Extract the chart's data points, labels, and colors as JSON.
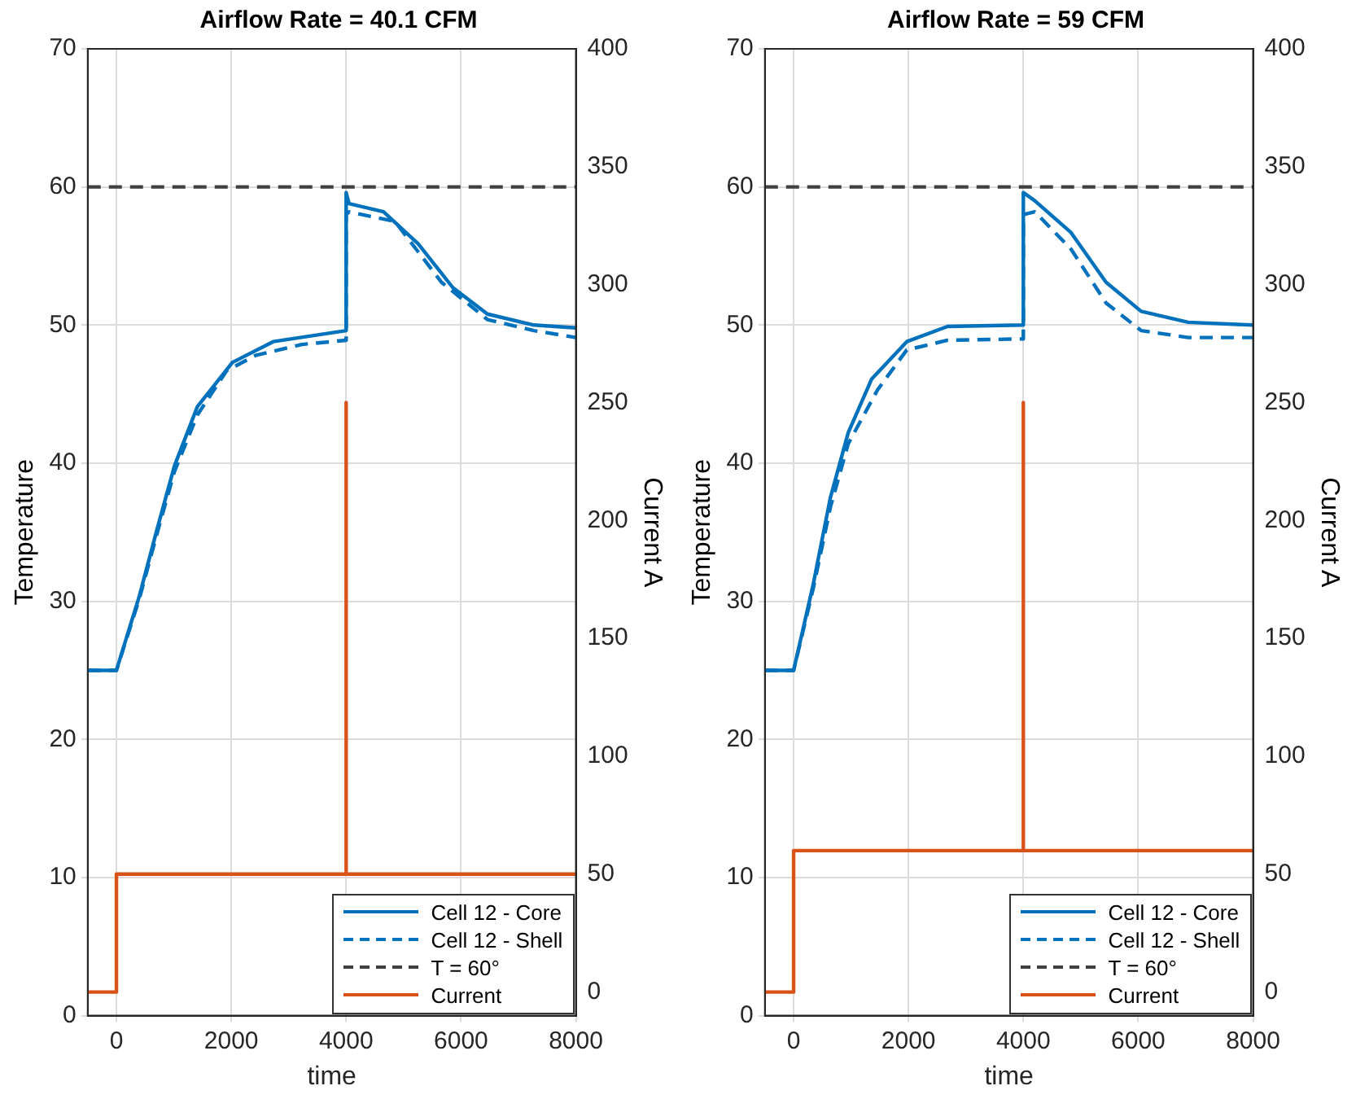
{
  "chart_data": [
    {
      "type": "line",
      "title": "Airflow Rate = 40.1 CFM",
      "xlabel": "time",
      "ylabel": "Temperature",
      "y2label": "Current A",
      "xlim": [
        -500,
        8000
      ],
      "xticks": [
        0,
        2000,
        4000,
        6000,
        8000
      ],
      "ylim": [
        0,
        70
      ],
      "yticks": [
        0,
        10,
        20,
        30,
        40,
        50,
        60,
        70
      ],
      "y2lim": [
        -10,
        400
      ],
      "y2ticks": [
        0,
        50,
        100,
        150,
        200,
        250,
        300,
        350,
        400
      ],
      "grid": true,
      "legend": "bottom right",
      "marker": "none",
      "ref_lines": [
        {
          "axis": "y",
          "value": 60,
          "label": "T = 60°",
          "color": "#404040",
          "line_style": "dashed"
        }
      ],
      "series": [
        {
          "name": "Cell 12 - Core",
          "color": "#0072bd",
          "line_style": "solid",
          "x": [
            -500,
            0,
            400,
            700,
            1010,
            1410,
            2020,
            2730,
            4000,
            4000,
            4050,
            4650,
            5250,
            5860,
            6460,
            7270,
            8000
          ],
          "values": [
            25,
            25,
            30.4,
            35.1,
            39.8,
            44.1,
            47.3,
            48.8,
            49.6,
            59.6,
            58.8,
            58.2,
            55.9,
            52.7,
            50.8,
            50.0,
            49.8
          ]
        },
        {
          "name": "Cell 12 - Shell",
          "color": "#0072bd",
          "line_style": "dashed",
          "x": [
            -500,
            0,
            400,
            700,
            1010,
            1410,
            1920,
            2420,
            3230,
            4000,
            4000,
            4050,
            4850,
            5660,
            6460,
            7270,
            8000
          ],
          "values": [
            25,
            25,
            30.2,
            34.8,
            39.4,
            43.5,
            46.7,
            47.8,
            48.6,
            48.9,
            58.0,
            58.2,
            57.5,
            53.1,
            50.4,
            49.6,
            49.1
          ]
        },
        {
          "name": "Current",
          "color": "#d95319",
          "line_style": "solid",
          "axis": "y2",
          "x": [
            -500,
            0,
            0,
            4000,
            4000,
            4000,
            8000
          ],
          "values": [
            0,
            0,
            50,
            50,
            250,
            50,
            50
          ]
        }
      ]
    },
    {
      "type": "line",
      "title": "Airflow Rate = 59 CFM",
      "xlabel": "time",
      "ylabel": "Temperature",
      "y2label": "Current A",
      "xlim": [
        -500,
        8000
      ],
      "xticks": [
        0,
        2000,
        4000,
        6000,
        8000
      ],
      "ylim": [
        0,
        70
      ],
      "yticks": [
        0,
        10,
        20,
        30,
        40,
        50,
        60,
        70
      ],
      "y2lim": [
        -10,
        400
      ],
      "y2ticks": [
        0,
        50,
        100,
        150,
        200,
        250,
        300,
        350,
        400
      ],
      "grid": true,
      "legend": "bottom right",
      "marker": "none",
      "ref_lines": [
        {
          "axis": "y",
          "value": 60,
          "label": "T = 60°",
          "color": "#404040",
          "line_style": "dashed"
        }
      ],
      "series": [
        {
          "name": "Cell 12 - Core",
          "color": "#0072bd",
          "line_style": "solid",
          "x": [
            -500,
            0,
            340,
            640,
            950,
            1360,
            1970,
            2680,
            4000,
            4000,
            4200,
            4830,
            5440,
            6050,
            6870,
            8000
          ],
          "values": [
            25,
            25,
            31.2,
            37.5,
            42.2,
            46.1,
            48.8,
            49.9,
            50,
            59.6,
            59.0,
            56.7,
            53.1,
            51.0,
            50.2,
            50
          ]
        },
        {
          "name": "Cell 12 - Shell",
          "color": "#0072bd",
          "line_style": "dashed",
          "x": [
            -500,
            0,
            340,
            640,
            950,
            1460,
            1970,
            2680,
            4000,
            4000,
            4200,
            4830,
            5440,
            6050,
            6870,
            8000
          ],
          "values": [
            25,
            25,
            30.9,
            36.8,
            41.4,
            45.3,
            48.2,
            48.9,
            49.0,
            58.0,
            58.2,
            55.5,
            51.6,
            49.6,
            49.1,
            49.1
          ]
        },
        {
          "name": "Current",
          "color": "#d95319",
          "line_style": "solid",
          "axis": "y2",
          "x": [
            -500,
            0,
            0,
            4000,
            4000,
            4000,
            8000
          ],
          "values": [
            0,
            0,
            60,
            60,
            250,
            60,
            60
          ]
        }
      ]
    }
  ]
}
